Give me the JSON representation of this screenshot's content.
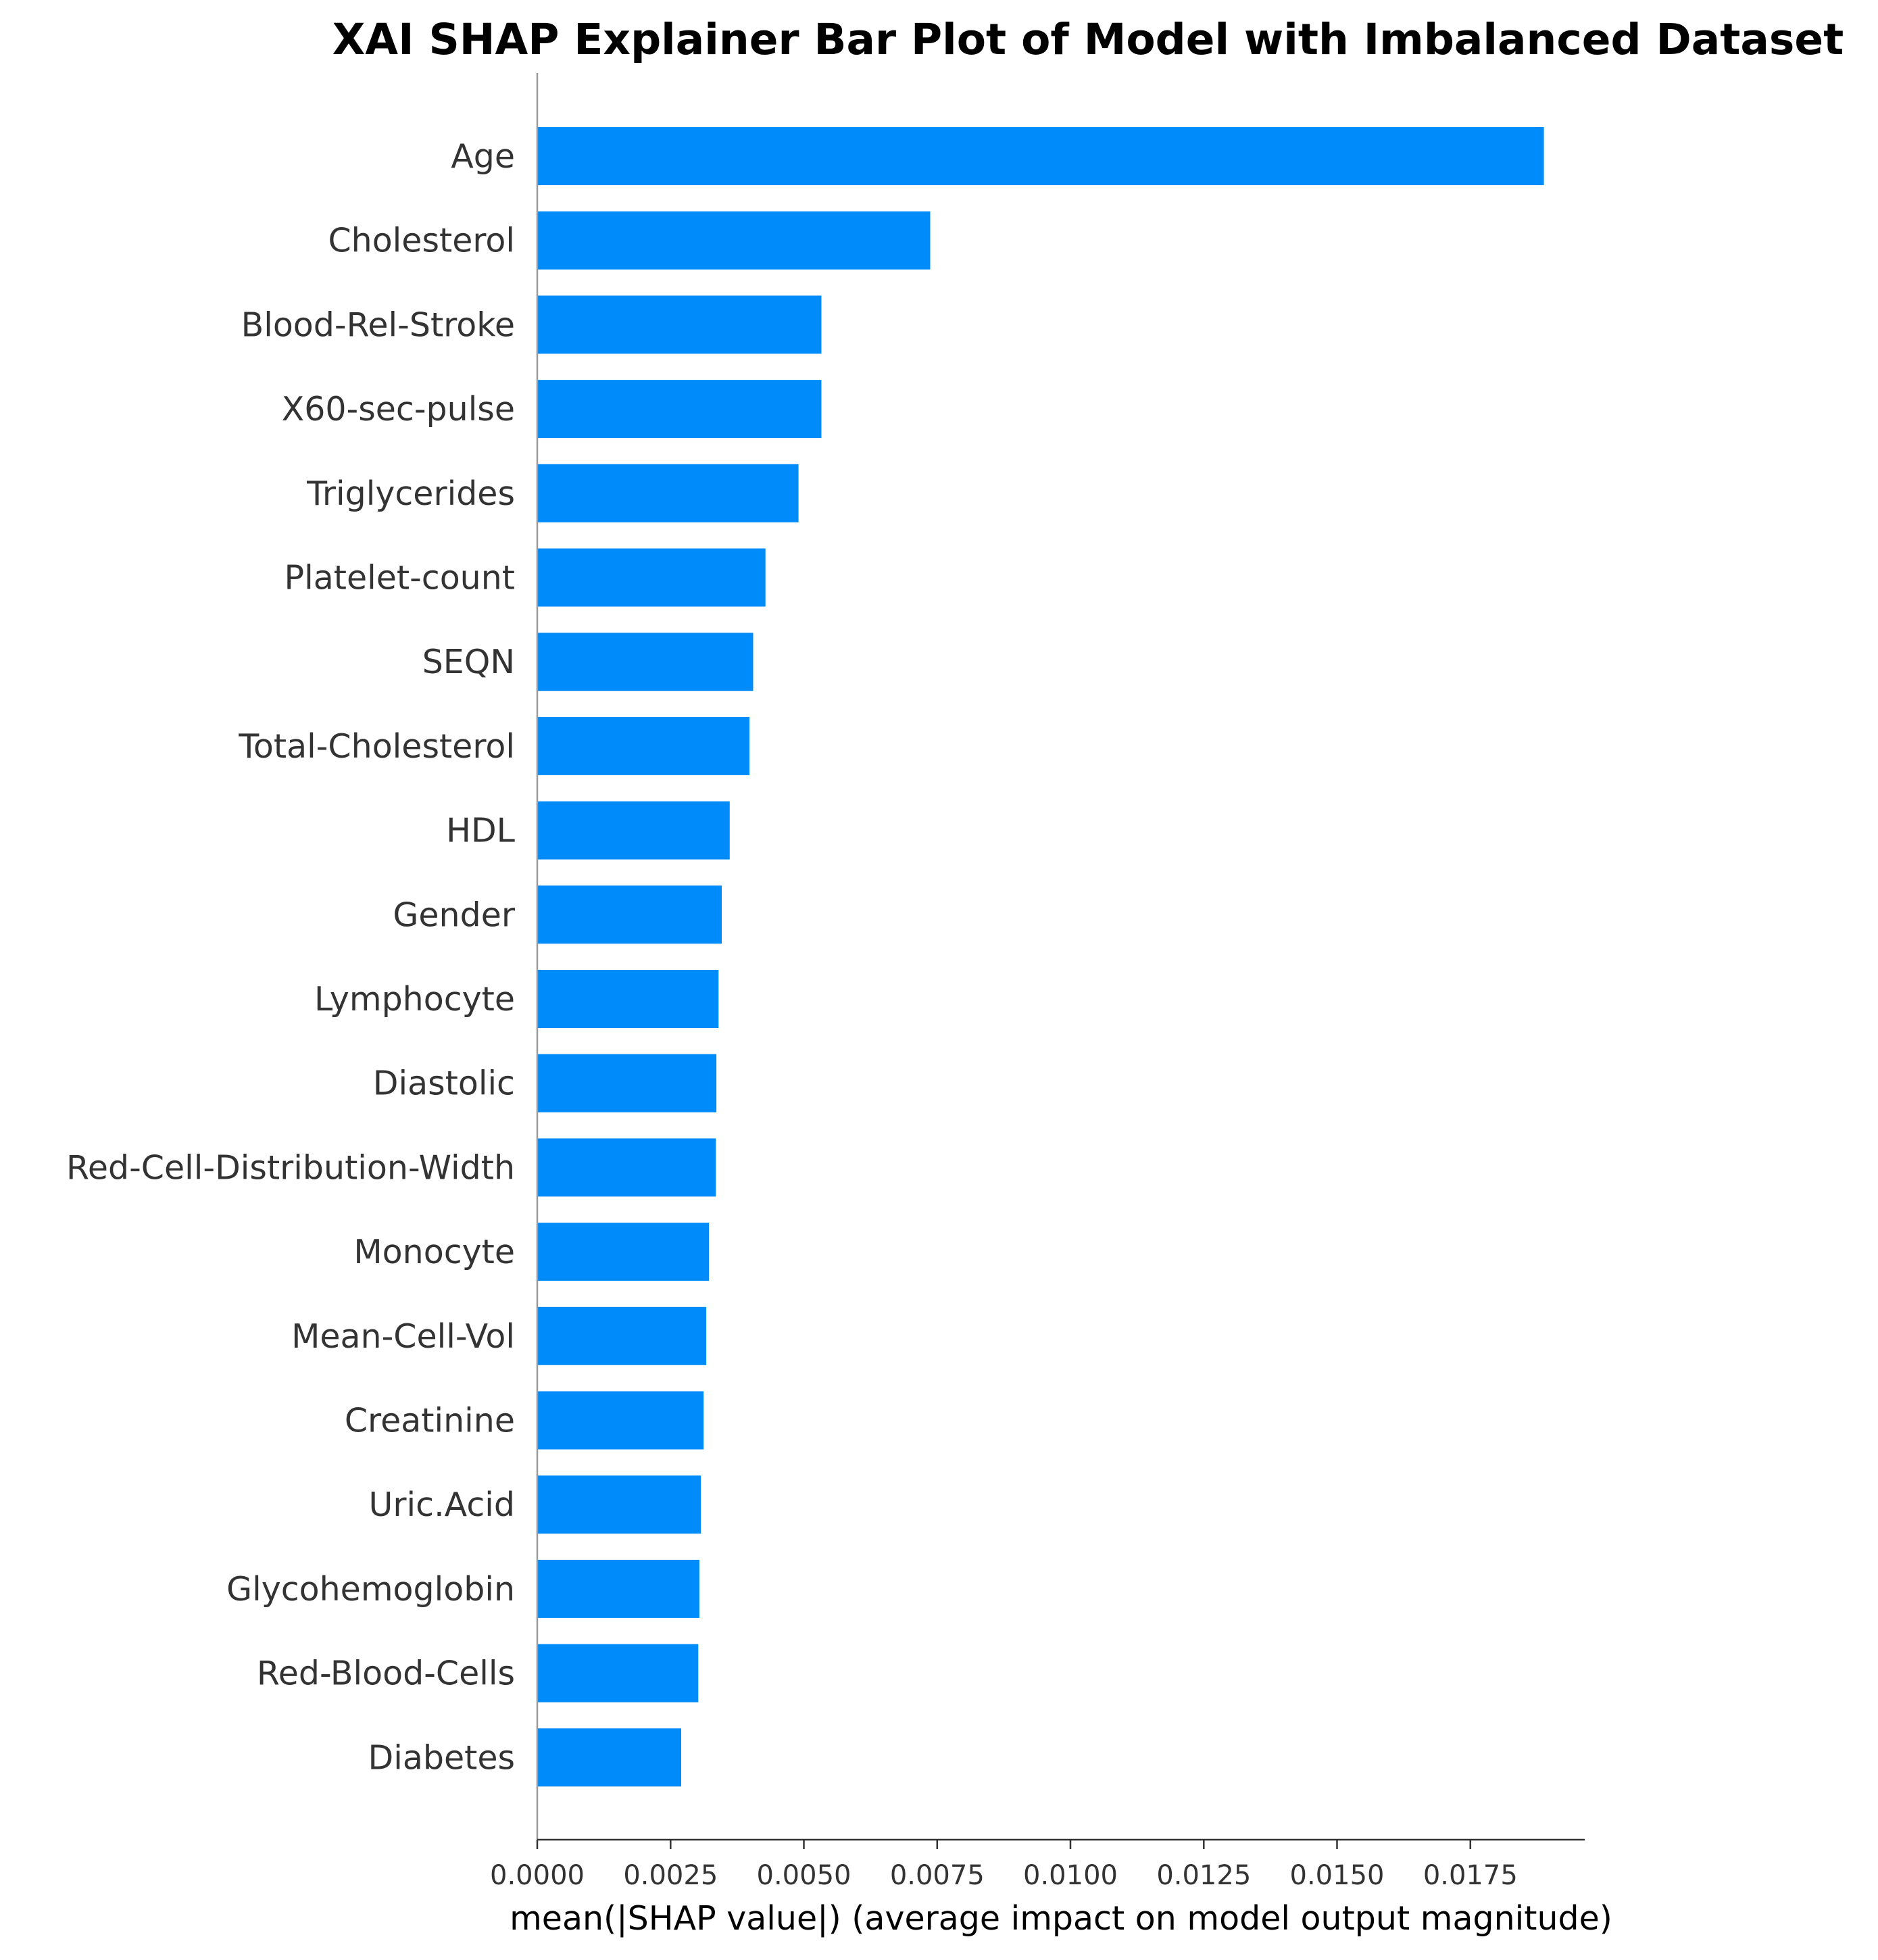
{
  "chart_data": {
    "type": "bar",
    "orientation": "horizontal",
    "title": "XAI SHAP Explainer Bar Plot of Model with Imbalanced Dataset",
    "xlabel": "mean(|SHAP value|) (average impact on model output magnitude)",
    "ylabel": "",
    "xlim": [
      0,
      0.0198
    ],
    "xticks": [
      0.0,
      0.0025,
      0.005,
      0.0075,
      0.01,
      0.0125,
      0.015,
      0.0175
    ],
    "xtick_labels": [
      "0.0000",
      "0.0025",
      "0.0050",
      "0.0075",
      "0.0100",
      "0.0125",
      "0.0150",
      "0.0175"
    ],
    "grid": false,
    "bar_color": "#008bfb",
    "categories": [
      "Age",
      "Cholesterol",
      "Blood-Rel-Stroke",
      "X60-sec-pulse",
      "Triglycerides",
      "Platelet-count",
      "SEQN",
      "Total-Cholesterol",
      "HDL",
      "Gender",
      "Lymphocyte",
      "Diastolic",
      "Red-Cell-Distribution-Width",
      "Monocyte",
      "Mean-Cell-Vol",
      "Creatinine",
      "Uric.Acid",
      "Glycohemoglobin",
      "Red-Blood-Cells",
      "Diabetes"
    ],
    "values": [
      0.01888,
      0.00737,
      0.00533,
      0.00533,
      0.0049,
      0.00428,
      0.00405,
      0.00398,
      0.00361,
      0.00346,
      0.0034,
      0.00336,
      0.00335,
      0.00322,
      0.00317,
      0.00312,
      0.00307,
      0.00304,
      0.00302,
      0.0027
    ]
  }
}
